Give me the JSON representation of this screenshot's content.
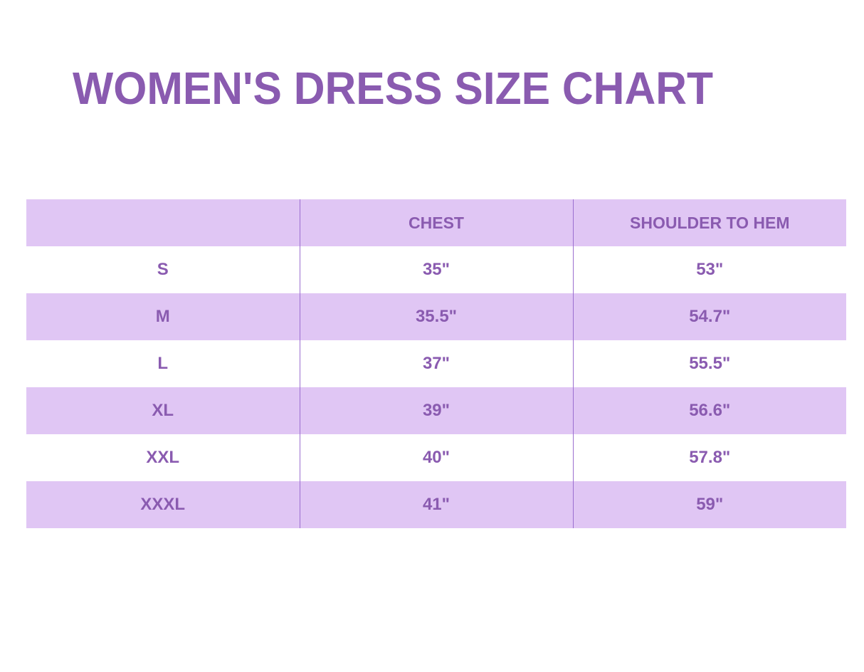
{
  "header": {
    "title": "WOMEN'S DRESS SIZE CHART"
  },
  "table": {
    "columns": [
      "CHEST",
      "SHOULDER TO HEM"
    ],
    "rows": [
      [
        "S",
        "35\"",
        "53\""
      ],
      [
        "M",
        "35.5\"",
        "54.7\""
      ],
      [
        "L",
        "37\"",
        "55.5\""
      ],
      [
        "XL",
        "39\"",
        "56.6\""
      ],
      [
        "XXL",
        "40\"",
        "57.8\""
      ],
      [
        "XXXL",
        "41\"",
        "59\""
      ]
    ]
  }
}
